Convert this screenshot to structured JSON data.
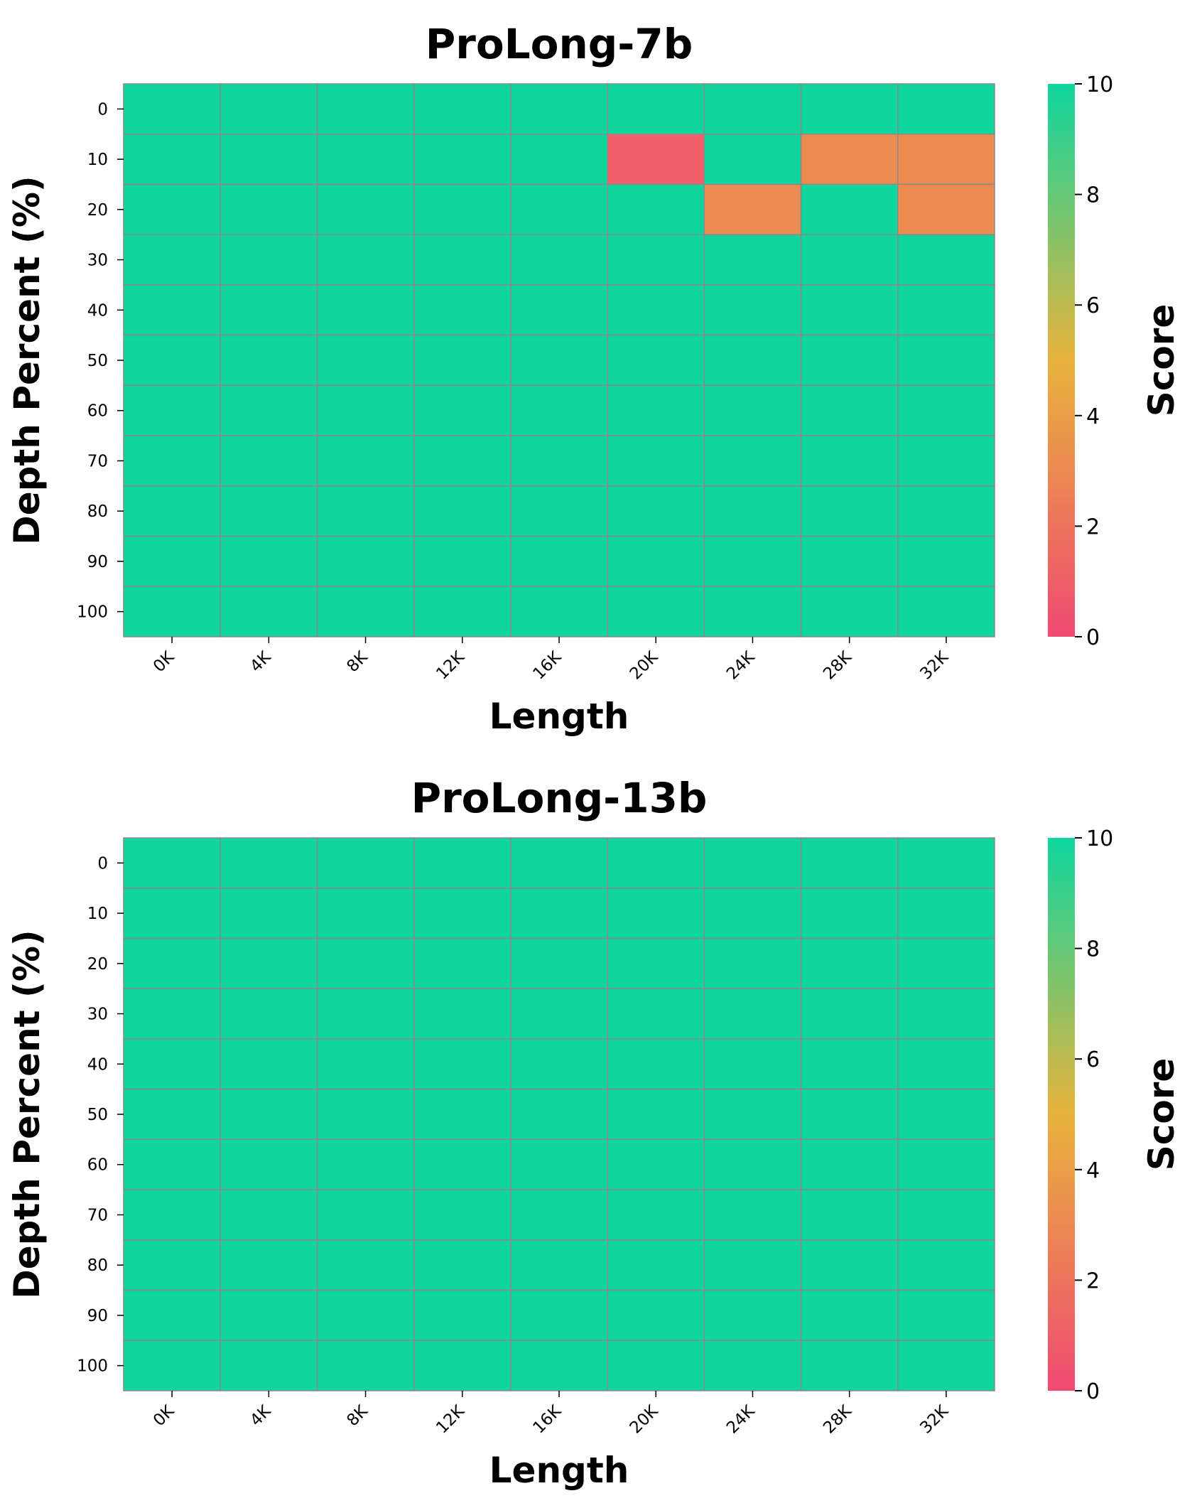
{
  "colors": {
    "good": "#0ed69e",
    "mid": "#ec8b4f",
    "bad": "#f0606a",
    "gridline": "#8a8a8a",
    "colormap": [
      "#f04a72",
      "#e8b33c",
      "#0ed69e"
    ]
  },
  "chart_data": [
    {
      "type": "heatmap",
      "title": "ProLong-7b",
      "xlabel": "Length",
      "ylabel": "Depth Percent (%)",
      "colorbar_label": "Score",
      "colorbar_ticks": [
        "0",
        "2",
        "4",
        "6",
        "8",
        "10"
      ],
      "vmin": 0,
      "vmax": 10,
      "x": [
        "0K",
        "4K",
        "8K",
        "12K",
        "16K",
        "20K",
        "24K",
        "28K",
        "32K"
      ],
      "y": [
        "0",
        "10",
        "20",
        "30",
        "40",
        "50",
        "60",
        "70",
        "80",
        "90",
        "100"
      ],
      "values": [
        [
          10,
          10,
          10,
          10,
          10,
          10,
          10,
          10,
          10
        ],
        [
          10,
          10,
          10,
          10,
          10,
          1,
          10,
          3,
          3
        ],
        [
          10,
          10,
          10,
          10,
          10,
          10,
          3,
          10,
          3
        ],
        [
          10,
          10,
          10,
          10,
          10,
          10,
          10,
          10,
          10
        ],
        [
          10,
          10,
          10,
          10,
          10,
          10,
          10,
          10,
          10
        ],
        [
          10,
          10,
          10,
          10,
          10,
          10,
          10,
          10,
          10
        ],
        [
          10,
          10,
          10,
          10,
          10,
          10,
          10,
          10,
          10
        ],
        [
          10,
          10,
          10,
          10,
          10,
          10,
          10,
          10,
          10
        ],
        [
          10,
          10,
          10,
          10,
          10,
          10,
          10,
          10,
          10
        ],
        [
          10,
          10,
          10,
          10,
          10,
          10,
          10,
          10,
          10
        ],
        [
          10,
          10,
          10,
          10,
          10,
          10,
          10,
          10,
          10
        ]
      ]
    },
    {
      "type": "heatmap",
      "title": "ProLong-13b",
      "xlabel": "Length",
      "ylabel": "Depth Percent (%)",
      "colorbar_label": "Score",
      "colorbar_ticks": [
        "0",
        "2",
        "4",
        "6",
        "8",
        "10"
      ],
      "vmin": 0,
      "vmax": 10,
      "x": [
        "0K",
        "4K",
        "8K",
        "12K",
        "16K",
        "20K",
        "24K",
        "28K",
        "32K"
      ],
      "y": [
        "0",
        "10",
        "20",
        "30",
        "40",
        "50",
        "60",
        "70",
        "80",
        "90",
        "100"
      ],
      "values": [
        [
          10,
          10,
          10,
          10,
          10,
          10,
          10,
          10,
          10
        ],
        [
          10,
          10,
          10,
          10,
          10,
          10,
          10,
          10,
          10
        ],
        [
          10,
          10,
          10,
          10,
          10,
          10,
          10,
          10,
          10
        ],
        [
          10,
          10,
          10,
          10,
          10,
          10,
          10,
          10,
          10
        ],
        [
          10,
          10,
          10,
          10,
          10,
          10,
          10,
          10,
          10
        ],
        [
          10,
          10,
          10,
          10,
          10,
          10,
          10,
          10,
          10
        ],
        [
          10,
          10,
          10,
          10,
          10,
          10,
          10,
          10,
          10
        ],
        [
          10,
          10,
          10,
          10,
          10,
          10,
          10,
          10,
          10
        ],
        [
          10,
          10,
          10,
          10,
          10,
          10,
          10,
          10,
          10
        ],
        [
          10,
          10,
          10,
          10,
          10,
          10,
          10,
          10,
          10
        ],
        [
          10,
          10,
          10,
          10,
          10,
          10,
          10,
          10,
          10
        ]
      ]
    }
  ]
}
